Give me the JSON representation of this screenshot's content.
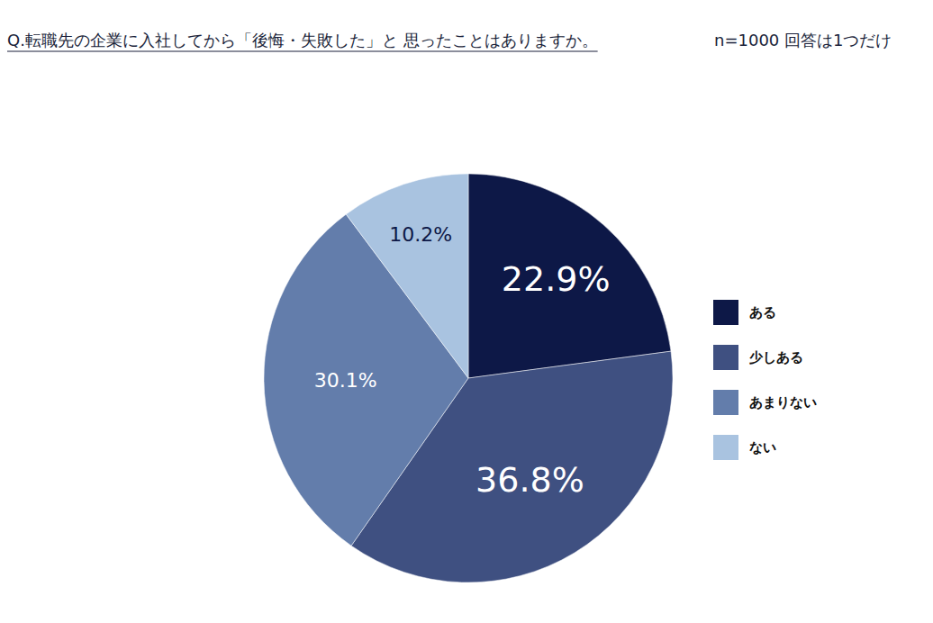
{
  "chart_data": {
    "type": "pie",
    "title": "Q.転職先の企業に入社してから「後悔・失敗した」と 思ったことはありますか。",
    "subtitle": "n=1000 回答は1つだけ",
    "categories": [
      "ある",
      "少しある",
      "あまりない",
      "ない"
    ],
    "values": [
      22.9,
      36.8,
      30.1,
      10.2
    ],
    "value_labels": [
      "22.9%",
      "36.8%",
      "30.1%",
      "10.2%"
    ],
    "colors": [
      "#0d1847",
      "#3f5081",
      "#637dab",
      "#a9c3e0"
    ],
    "data_labels": true,
    "legend": "right"
  }
}
